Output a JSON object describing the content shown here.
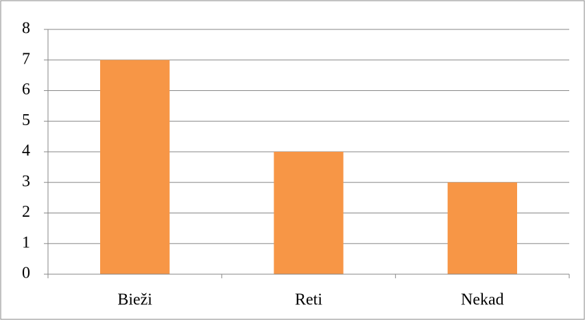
{
  "chart_data": {
    "type": "bar",
    "categories": [
      "Bieži",
      "Reti",
      "Nekad"
    ],
    "values": [
      7,
      4,
      3
    ],
    "color": "#f79646",
    "ylim": [
      0,
      8
    ],
    "yticks": [
      0,
      1,
      2,
      3,
      4,
      5,
      6,
      7,
      8
    ],
    "grid": true
  }
}
